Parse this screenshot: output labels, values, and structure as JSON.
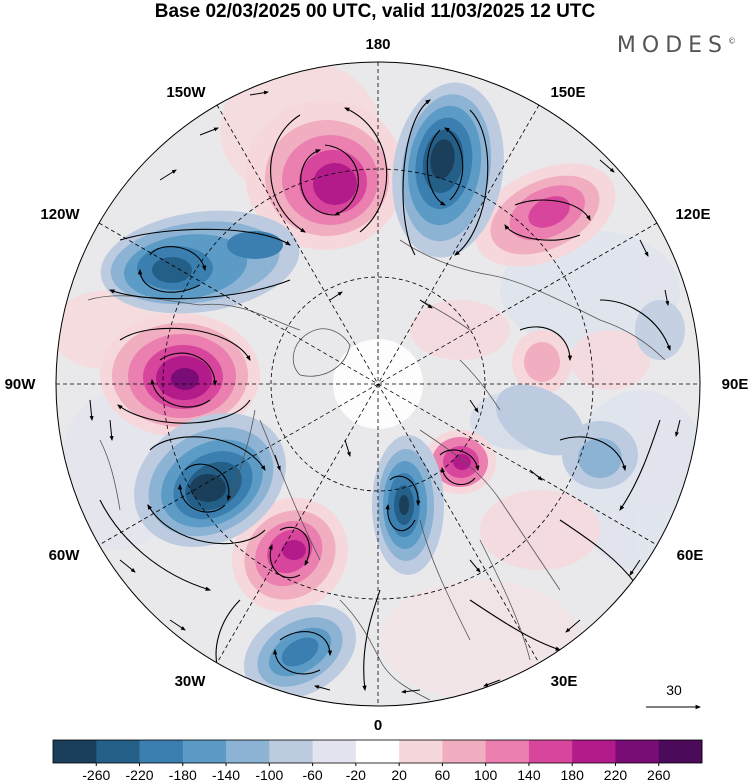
{
  "title": "Base 02/03/2025 00 UTC, valid 11/03/2025 12 UTC",
  "brand": "MODES",
  "brand_mark": "©",
  "longitude_labels": {
    "n180": "180",
    "n150e": "150E",
    "n120e": "120E",
    "n90e": "90E",
    "n60e": "60E",
    "n30e": "30E",
    "n0": "0",
    "n30w": "30W",
    "n60w": "60W",
    "n90w": "90W",
    "n120w": "120W",
    "n150w": "150W"
  },
  "vector_reference": "30",
  "colorbar": {
    "ticks": [
      "-260",
      "-220",
      "-180",
      "-140",
      "-100",
      "-60",
      "-20",
      "20",
      "60",
      "100",
      "140",
      "180",
      "220",
      "260"
    ],
    "colors": [
      "#1b3f5a",
      "#245f88",
      "#3a7fb0",
      "#5b9bc6",
      "#8db3d4",
      "#bccbe0",
      "#e3e4ef",
      "#ffffff",
      "#f6d8dc",
      "#f0aec0",
      "#ea7fb0",
      "#d8459c",
      "#b31a8a",
      "#7a0c78",
      "#4b0a5a"
    ]
  }
}
